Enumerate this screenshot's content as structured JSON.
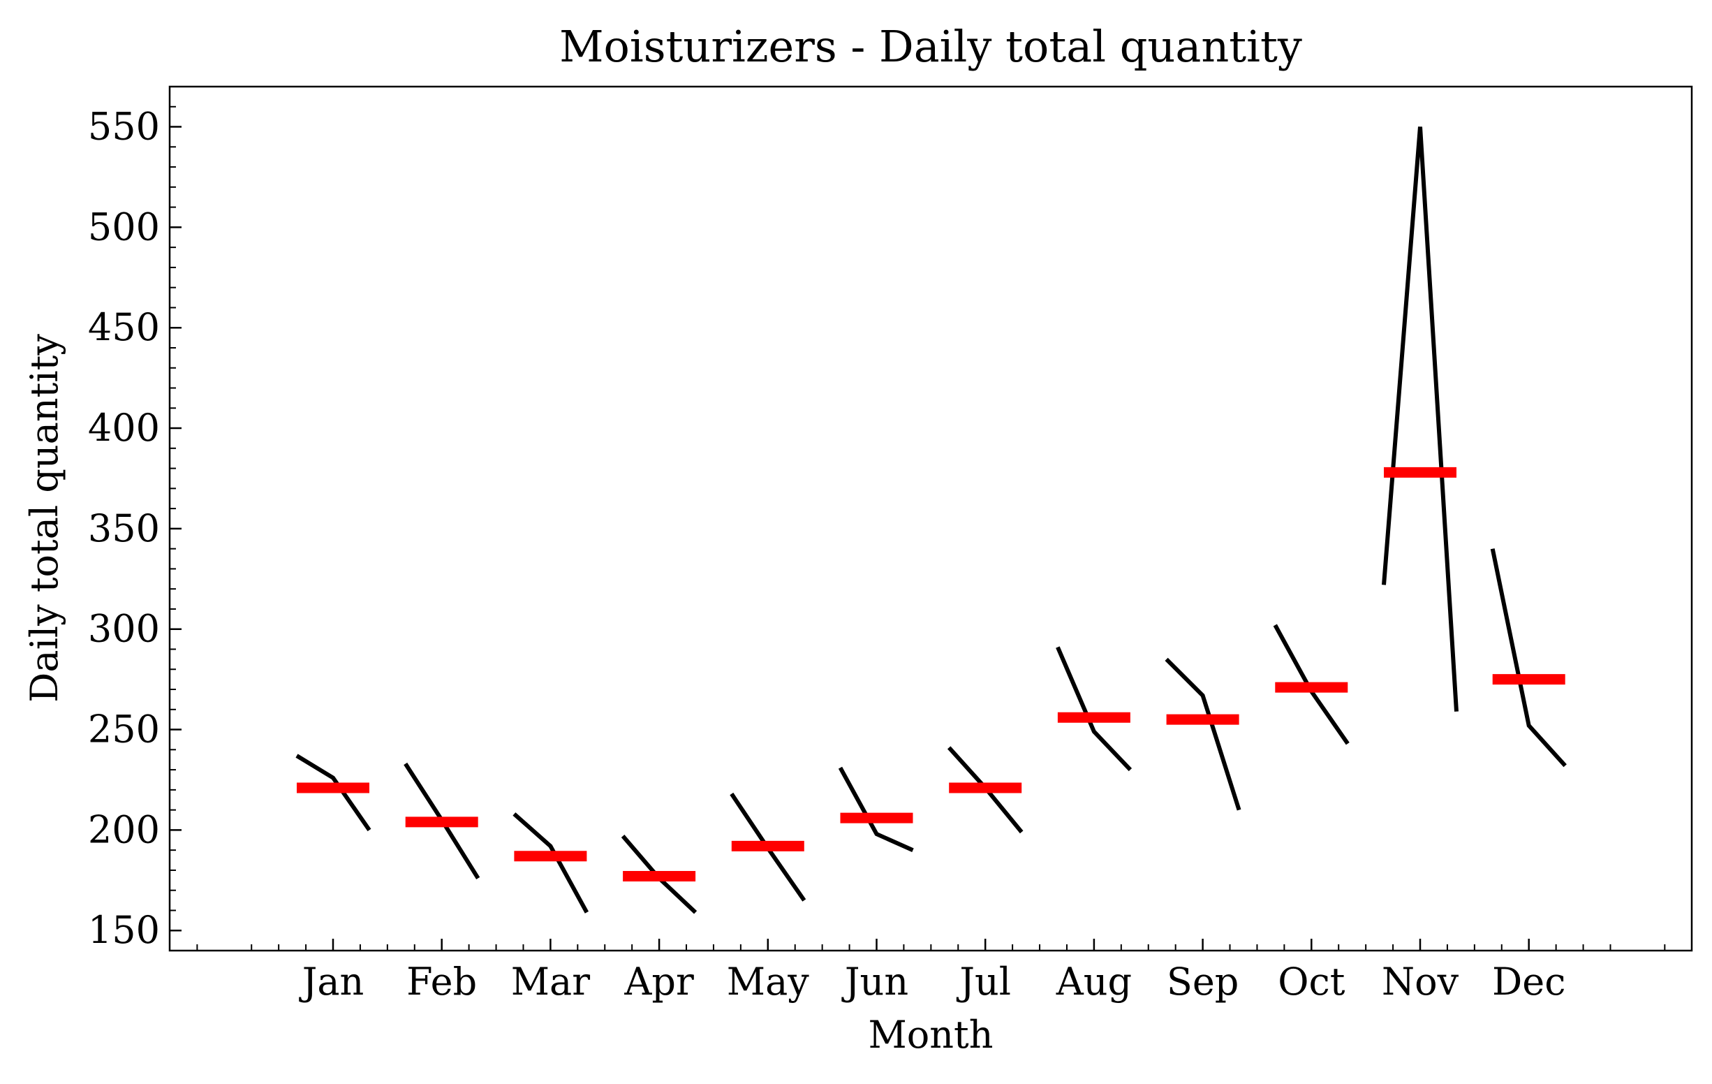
{
  "chart_data": {
    "type": "line",
    "title": "Moisturizers - Daily total quantity",
    "xlabel": "Month",
    "ylabel": "Daily total quantity",
    "ylim": [
      140,
      570
    ],
    "yticks": [
      150,
      200,
      250,
      300,
      350,
      400,
      450,
      500,
      550
    ],
    "categories": [
      "Jan",
      "Feb",
      "Mar",
      "Apr",
      "May",
      "Jun",
      "Jul",
      "Aug",
      "Sep",
      "Oct",
      "Nov",
      "Dec"
    ],
    "series": [
      {
        "values": [
          [
            237,
            226,
            200
          ],
          [
            233,
            205,
            176
          ],
          [
            208,
            192,
            159
          ],
          [
            197,
            176,
            159
          ],
          [
            218,
            191,
            165
          ],
          [
            231,
            198,
            190
          ],
          [
            241,
            221,
            199
          ],
          [
            291,
            249,
            230
          ],
          [
            285,
            267,
            210
          ],
          [
            302,
            269,
            243
          ],
          [
            322,
            550,
            259
          ],
          [
            340,
            252,
            232
          ]
        ]
      },
      {
        "values": [
          221,
          204,
          187,
          177,
          192,
          206,
          221,
          256,
          255,
          271,
          378,
          275
        ]
      }
    ],
    "grid": false,
    "colors": {
      "series_line": "#000000",
      "mean_line": "#ff0000",
      "axes": "#000000"
    }
  }
}
